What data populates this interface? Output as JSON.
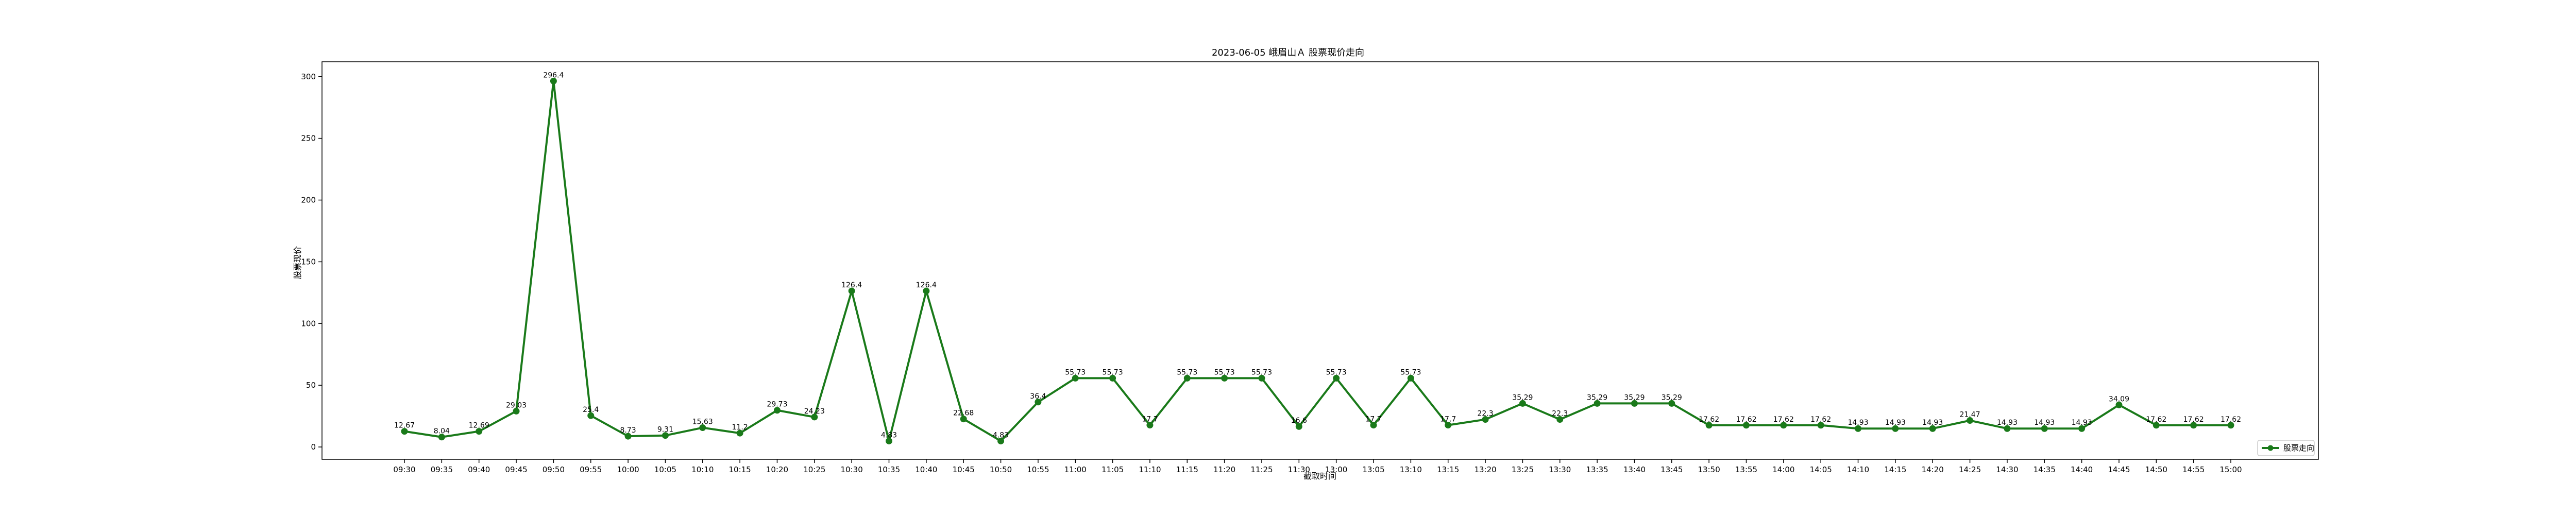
{
  "chart_data": {
    "type": "line",
    "title": "2023-06-05 峨眉山Ａ 股票现价走向",
    "xlabel": "截取时间",
    "ylabel": "股票现价",
    "ylim": [
      -10,
      312
    ],
    "yticks": [
      0,
      50,
      100,
      150,
      200,
      250,
      300
    ],
    "grid": false,
    "legend_position": "lower-right",
    "x": [
      "09:30",
      "09:35",
      "09:40",
      "09:45",
      "09:50",
      "09:55",
      "10:00",
      "10:05",
      "10:10",
      "10:15",
      "10:20",
      "10:25",
      "10:30",
      "10:35",
      "10:40",
      "10:45",
      "10:50",
      "10:55",
      "11:00",
      "11:05",
      "11:10",
      "11:15",
      "11:20",
      "11:25",
      "11:30",
      "13:00",
      "13:05",
      "13:10",
      "13:15",
      "13:20",
      "13:25",
      "13:30",
      "13:35",
      "13:40",
      "13:45",
      "13:50",
      "13:55",
      "14:00",
      "14:05",
      "14:10",
      "14:15",
      "14:20",
      "14:25",
      "14:30",
      "14:35",
      "14:40",
      "14:45",
      "14:50",
      "14:55",
      "15:00"
    ],
    "series": [
      {
        "name": "股票走向",
        "color": "#1a7a1a",
        "marker": "circle",
        "values": [
          12.67,
          8.04,
          12.69,
          29.03,
          296.4,
          25.4,
          8.73,
          9.31,
          15.63,
          11.2,
          29.73,
          24.23,
          126.4,
          4.83,
          126.4,
          22.68,
          4.83,
          36.4,
          55.73,
          55.73,
          17.7,
          55.73,
          55.73,
          55.73,
          16.6,
          55.73,
          17.7,
          55.73,
          17.7,
          22.3,
          35.29,
          22.3,
          35.29,
          35.29,
          35.29,
          17.62,
          17.62,
          17.62,
          17.62,
          14.93,
          14.93,
          14.93,
          21.47,
          14.93,
          14.93,
          14.93,
          34.09,
          17.62,
          17.62,
          17.62
        ],
        "labels": [
          "12.67",
          "8.04",
          "12.69",
          "29.03",
          "296.4",
          "25.4",
          "8.73",
          "9.31",
          "15.63",
          "11.2",
          "29.73",
          "24.23",
          "126.4",
          "4.83",
          "126.4",
          "22.68",
          "4.83",
          "36.4",
          "55.73",
          "55.73",
          "17.7",
          "55.73",
          "55.73",
          "55.73",
          "16.6",
          "55.73",
          "17.7",
          "55.73",
          "17.7",
          "22.3",
          "35.29",
          "22.3",
          "35.29",
          "35.29",
          "35.29",
          "17.62",
          "17.62",
          "17.62",
          "17.62",
          "14.93",
          "14.93",
          "14.93",
          "21.47",
          "14.93",
          "14.93",
          "14.93",
          "34.09",
          "17.62",
          "17.62",
          "17.62"
        ]
      }
    ]
  }
}
